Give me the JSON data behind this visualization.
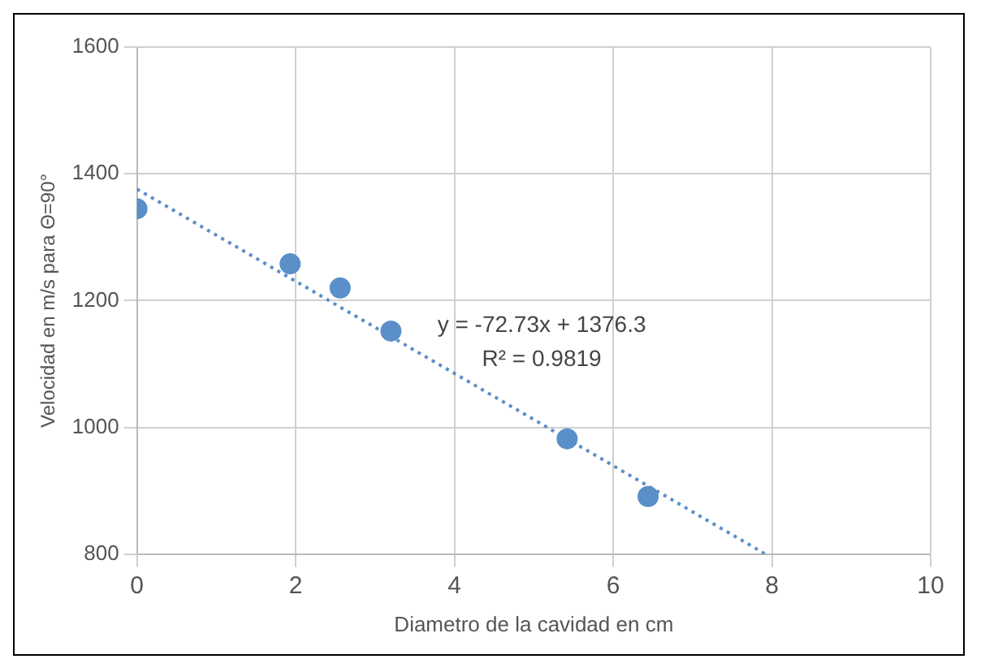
{
  "chart_data": {
    "type": "scatter",
    "xlabel": "Diametro de la cavidad en cm",
    "ylabel": "Velocidad en m/s para Θ=90°",
    "xlim": [
      0,
      10
    ],
    "xticks": [
      0,
      2,
      4,
      6,
      8,
      10
    ],
    "ylim": [
      800,
      1600
    ],
    "yticks": [
      800,
      1000,
      1200,
      1400,
      1600
    ],
    "grid": true,
    "legend": false,
    "marker": "circle",
    "series": [
      {
        "type": "scatter",
        "color": "#5b8fc9",
        "x": [
          0,
          1.93,
          2.56,
          3.2,
          5.42,
          6.44
        ],
        "values": [
          1345,
          1258,
          1220,
          1152,
          982,
          891
        ]
      },
      {
        "type": "line",
        "color": "#5b8fc9",
        "line_style": "dotted",
        "marker": "none",
        "x": [
          0,
          7.92
        ],
        "values": [
          1376,
          800
        ]
      }
    ],
    "annotations": [
      "y = -72.73x + 1376.3",
      "R² = 0.9819"
    ]
  }
}
